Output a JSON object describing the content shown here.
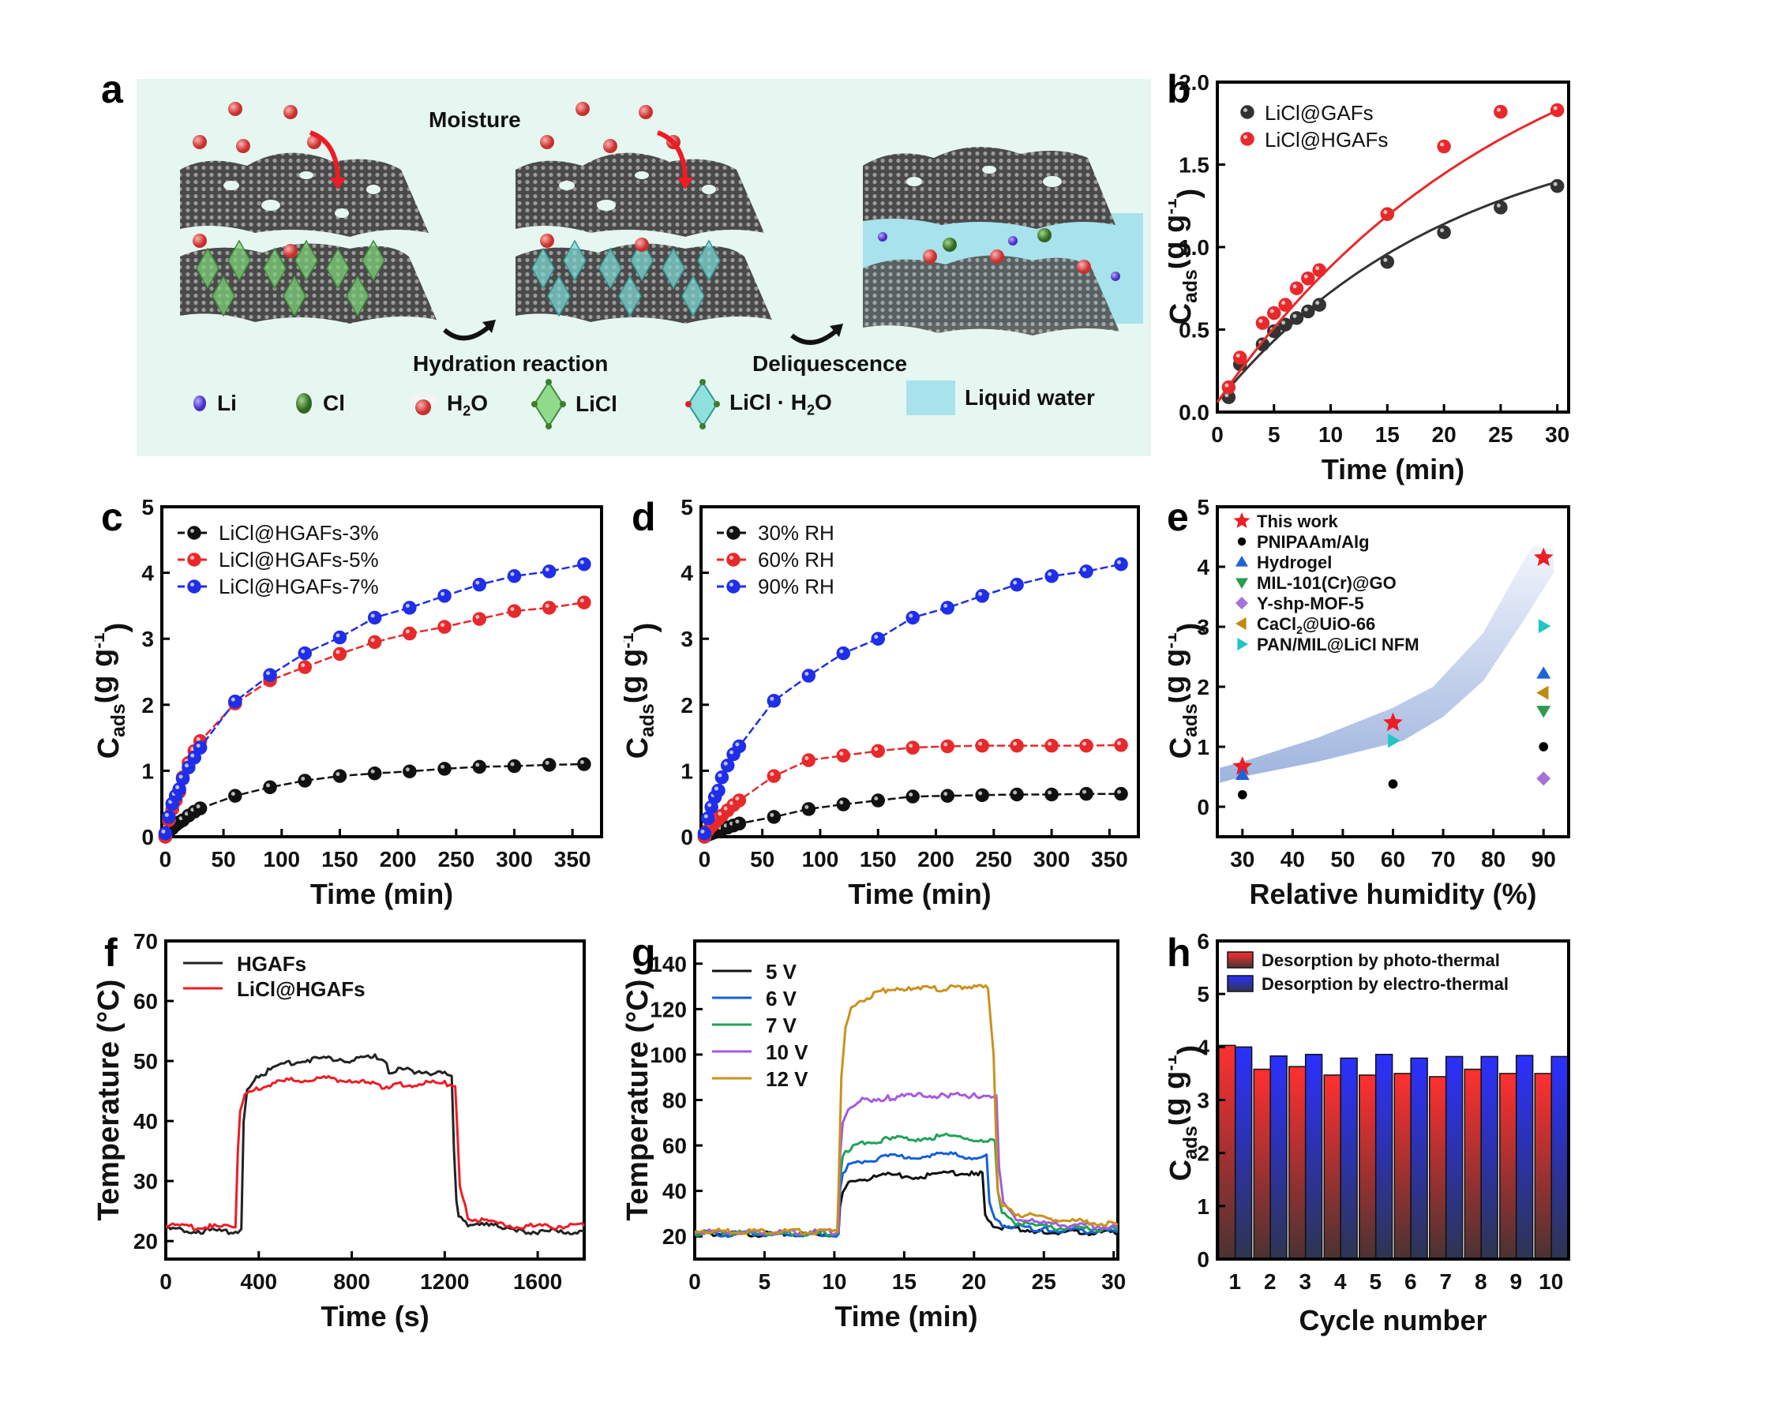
{
  "figure": {
    "panel_letters": [
      "a",
      "b",
      "c",
      "d",
      "e",
      "f",
      "g",
      "h"
    ]
  },
  "schematic": {
    "labels": {
      "moisture": "Moisture",
      "hydration": "Hydration reaction",
      "deliquescence": "Deliquescence"
    },
    "legend": [
      {
        "label": "Li",
        "icon": "lithium-ion-icon",
        "color": "#5b3fd6"
      },
      {
        "label": "Cl",
        "icon": "chloride-ion-icon",
        "color": "#3f7d2a"
      },
      {
        "label": "H2O",
        "icon": "water-molecule-icon",
        "color": "#d9413f"
      },
      {
        "label": "LiCl",
        "icon": "licl-octahedron-icon",
        "color": "#6cc76a"
      },
      {
        "label": "LiCl · H2O",
        "icon": "licl-hydrate-octahedron-icon",
        "color": "#5cc6c2"
      },
      {
        "label": "Liquid water",
        "icon": "liquid-water-swatch-icon",
        "color": "#a8e2ec"
      }
    ],
    "background": "#e6f6f1"
  },
  "chart_data": [
    {
      "id": "b",
      "type": "scatter",
      "title": "",
      "xlabel": "Time (min)",
      "ylabel": "Cads (g g-1)",
      "xlim": [
        0,
        31
      ],
      "ylim": [
        0,
        2.0
      ],
      "xticks": [
        0,
        5,
        10,
        15,
        20,
        25,
        30
      ],
      "yticks": [
        0.0,
        0.5,
        1.0,
        1.5,
        2.0
      ],
      "ytick_labels": [
        "0.0",
        "0.5",
        "1.0",
        "1.5",
        "2.0"
      ],
      "legend_position": "top-left",
      "series": [
        {
          "name": "LiCl@GAFs",
          "color": "#333333",
          "x": [
            1,
            2,
            4,
            5,
            6,
            7,
            8,
            9,
            15,
            20,
            25,
            30
          ],
          "y": [
            0.09,
            0.29,
            0.41,
            0.49,
            0.53,
            0.57,
            0.61,
            0.65,
            0.91,
            1.09,
            1.24,
            1.37
          ],
          "fit": {
            "a": 1.75,
            "k": 0.048,
            "y0": 0.06
          }
        },
        {
          "name": "LiCl@HGAFs",
          "color": "#e8292b",
          "x": [
            1,
            2,
            4,
            5,
            6,
            7,
            8,
            9,
            15,
            20,
            25,
            30
          ],
          "y": [
            0.15,
            0.33,
            0.54,
            0.6,
            0.65,
            0.75,
            0.81,
            0.86,
            1.2,
            1.61,
            1.82,
            1.83
          ],
          "fit": {
            "a": 2.6,
            "k": 0.038,
            "y0": 0.06
          }
        }
      ]
    },
    {
      "id": "c",
      "type": "line",
      "xlabel": "Time (min)",
      "ylabel": "Cads (g g-1)",
      "xlim": [
        -3,
        375
      ],
      "ylim": [
        0,
        5
      ],
      "xticks": [
        0,
        50,
        100,
        150,
        200,
        250,
        300,
        350
      ],
      "yticks": [
        0,
        1,
        2,
        3,
        4,
        5
      ],
      "legend_position": "top-left",
      "series": [
        {
          "name": "LiCl@HGAFs-3%",
          "color": "#111111",
          "x": [
            0,
            3,
            6,
            9,
            12,
            15,
            20,
            25,
            30,
            60,
            90,
            120,
            150,
            180,
            210,
            240,
            270,
            300,
            330,
            360
          ],
          "y": [
            0,
            0.08,
            0.13,
            0.18,
            0.22,
            0.25,
            0.32,
            0.38,
            0.43,
            0.62,
            0.75,
            0.85,
            0.92,
            0.96,
            0.99,
            1.03,
            1.06,
            1.07,
            1.09,
            1.1
          ]
        },
        {
          "name": "LiCl@HGAFs-5%",
          "color": "#e8292b",
          "x": [
            0,
            3,
            6,
            9,
            12,
            15,
            20,
            25,
            30,
            60,
            90,
            120,
            150,
            180,
            210,
            240,
            270,
            300,
            330,
            360
          ],
          "y": [
            0,
            0.25,
            0.42,
            0.55,
            0.68,
            0.9,
            1.12,
            1.3,
            1.45,
            2.02,
            2.37,
            2.57,
            2.77,
            2.95,
            3.08,
            3.18,
            3.3,
            3.42,
            3.47,
            3.55
          ]
        },
        {
          "name": "LiCl@HGAFs-7%",
          "color": "#1f2ee8",
          "x": [
            0,
            3,
            6,
            9,
            12,
            15,
            20,
            25,
            30,
            60,
            90,
            120,
            150,
            180,
            210,
            240,
            270,
            300,
            330,
            360
          ],
          "y": [
            0.05,
            0.3,
            0.5,
            0.62,
            0.72,
            0.88,
            1.05,
            1.2,
            1.35,
            2.05,
            2.45,
            2.78,
            3.02,
            3.32,
            3.47,
            3.65,
            3.82,
            3.95,
            4.02,
            4.13
          ]
        }
      ]
    },
    {
      "id": "d",
      "type": "line",
      "xlabel": "Time (min)",
      "ylabel": "Cads (g g-1)",
      "xlim": [
        -3,
        375
      ],
      "ylim": [
        0,
        5
      ],
      "xticks": [
        0,
        50,
        100,
        150,
        200,
        250,
        300,
        350
      ],
      "yticks": [
        0,
        1,
        2,
        3,
        4,
        5
      ],
      "legend_position": "top-left",
      "series": [
        {
          "name": "30% RH",
          "color": "#111111",
          "x": [
            0,
            3,
            6,
            9,
            12,
            15,
            20,
            25,
            30,
            60,
            90,
            120,
            150,
            180,
            210,
            240,
            270,
            300,
            330,
            360
          ],
          "y": [
            0,
            0.03,
            0.05,
            0.07,
            0.09,
            0.11,
            0.14,
            0.17,
            0.2,
            0.3,
            0.42,
            0.49,
            0.55,
            0.61,
            0.62,
            0.63,
            0.64,
            0.64,
            0.65,
            0.65
          ]
        },
        {
          "name": "60% RH",
          "color": "#e8292b",
          "x": [
            0,
            3,
            6,
            9,
            12,
            15,
            20,
            25,
            30,
            60,
            90,
            120,
            150,
            180,
            210,
            240,
            270,
            300,
            330,
            360
          ],
          "y": [
            0,
            0.1,
            0.16,
            0.22,
            0.27,
            0.32,
            0.4,
            0.48,
            0.55,
            0.92,
            1.16,
            1.23,
            1.3,
            1.35,
            1.37,
            1.38,
            1.38,
            1.38,
            1.38,
            1.39
          ]
        },
        {
          "name": "90% RH",
          "color": "#1f2ee8",
          "x": [
            0,
            3,
            6,
            9,
            12,
            15,
            20,
            25,
            30,
            60,
            90,
            120,
            150,
            180,
            210,
            240,
            270,
            300,
            330,
            360
          ],
          "y": [
            0.05,
            0.28,
            0.45,
            0.6,
            0.7,
            0.9,
            1.08,
            1.25,
            1.37,
            2.06,
            2.44,
            2.78,
            3.0,
            3.32,
            3.47,
            3.65,
            3.82,
            3.95,
            4.02,
            4.13
          ]
        }
      ]
    },
    {
      "id": "e",
      "type": "scatter",
      "xlabel": "Relative humidity (%)",
      "ylabel": "Cads (g g-1)",
      "xlim": [
        25,
        95
      ],
      "ylim": [
        -0.5,
        5
      ],
      "xticks": [
        30,
        40,
        50,
        60,
        70,
        80,
        90
      ],
      "yticks": [
        0,
        1,
        2,
        3,
        4,
        5
      ],
      "legend_position": "top-left",
      "band": {
        "color": "#8ea7d8",
        "upper": [
          [
            25.5,
            0.65
          ],
          [
            30,
            0.75
          ],
          [
            45,
            1.15
          ],
          [
            60,
            1.65
          ],
          [
            68,
            2.0
          ],
          [
            78,
            2.9
          ],
          [
            86,
            4.1
          ],
          [
            88,
            4.35
          ],
          [
            92,
            4.3
          ]
        ],
        "lower": [
          [
            92,
            3.9
          ],
          [
            86,
            3.1
          ],
          [
            78,
            2.1
          ],
          [
            70,
            1.5
          ],
          [
            62,
            1.1
          ],
          [
            45,
            0.75
          ],
          [
            30,
            0.5
          ],
          [
            25.5,
            0.4
          ]
        ]
      },
      "series": [
        {
          "name": "This work",
          "marker": "star",
          "color": "#ee1c25",
          "x": [
            30,
            60,
            90
          ],
          "y": [
            0.67,
            1.4,
            4.15
          ]
        },
        {
          "name": "PNIPAAm/Alg",
          "marker": "circle",
          "color": "#000000",
          "x": [
            30,
            60,
            90
          ],
          "y": [
            0.2,
            0.38,
            1.0
          ]
        },
        {
          "name": "Hydrogel",
          "marker": "triangle-up",
          "color": "#1f63d6",
          "x": [
            30,
            90
          ],
          "y": [
            0.53,
            2.22
          ]
        },
        {
          "name": "MIL-101(Cr)@GO",
          "marker": "triangle-down",
          "color": "#2a9b4f",
          "x": [
            90
          ],
          "y": [
            1.6
          ]
        },
        {
          "name": "Y-shp-MOF-5",
          "marker": "diamond",
          "color": "#a672d9",
          "x": [
            90
          ],
          "y": [
            0.47
          ]
        },
        {
          "name": "CaCl2@UiO-66",
          "marker": "triangle-left",
          "color": "#c08a12",
          "x": [
            90
          ],
          "y": [
            1.9
          ]
        },
        {
          "name": "PAN/MIL@LiCl NFM",
          "marker": "triangle-right",
          "color": "#1ec6c6",
          "x": [
            60,
            90
          ],
          "y": [
            1.1,
            3.01
          ]
        }
      ]
    },
    {
      "id": "f",
      "type": "line",
      "xlabel": "Time (s)",
      "ylabel": "Temperature (°C)",
      "xlim": [
        0,
        1800
      ],
      "ylim": [
        17,
        70
      ],
      "xticks": [
        0,
        400,
        800,
        1200,
        1600
      ],
      "yticks": [
        20,
        30,
        40,
        50,
        60,
        70
      ],
      "legend_position": "top-left",
      "series": [
        {
          "name": "HGAFs",
          "color": "#222222",
          "x": [
            0,
            100,
            200,
            310,
            325,
            335,
            350,
            400,
            500,
            600,
            700,
            800,
            900,
            940,
            960,
            1000,
            1100,
            1200,
            1230,
            1240,
            1250,
            1260,
            1300,
            1400,
            1500,
            1520,
            1600,
            1700,
            1800
          ],
          "y": [
            22.0,
            21.8,
            21.6,
            21.6,
            22,
            40,
            45,
            47.5,
            49.5,
            50.2,
            50.5,
            50.2,
            50.6,
            50.4,
            48.2,
            48.5,
            48.3,
            47.8,
            47.5,
            35,
            27,
            24,
            22.8,
            22.5,
            22.3,
            21.7,
            21.6,
            21.6,
            21.6
          ]
        },
        {
          "name": "LiCl@HGAFs",
          "color": "#ee1c25",
          "x": [
            0,
            100,
            200,
            300,
            310,
            320,
            340,
            400,
            500,
            600,
            700,
            800,
            900,
            950,
            1000,
            1100,
            1200,
            1245,
            1255,
            1265,
            1300,
            1400,
            1500,
            1600,
            1700,
            1800
          ],
          "y": [
            22.5,
            22.4,
            22.3,
            22.3,
            35,
            42,
            44,
            45.5,
            46.5,
            47,
            47,
            46.8,
            46,
            45.8,
            46,
            46.2,
            46.3,
            45.8,
            38,
            29,
            24,
            23,
            22.5,
            22.4,
            22.5,
            22.5
          ]
        }
      ]
    },
    {
      "id": "g",
      "type": "line",
      "xlabel": "Time (min)",
      "ylabel": "Temperature (°C)",
      "xlim": [
        0,
        30.3
      ],
      "ylim": [
        10,
        150
      ],
      "xticks": [
        0,
        5,
        10,
        15,
        20,
        25,
        30
      ],
      "yticks": [
        20,
        40,
        60,
        80,
        100,
        120,
        140
      ],
      "legend_position": "top-left",
      "series": [
        {
          "name": "5 V",
          "color": "#111111",
          "x": [
            0,
            10.3,
            10.4,
            10.6,
            11,
            12,
            14,
            16,
            18,
            20,
            20.6,
            20.8,
            21.2,
            22,
            25,
            30.3
          ],
          "y": [
            21,
            21,
            33,
            40,
            43,
            45,
            47,
            46,
            48,
            48,
            48,
            30,
            25,
            24,
            22,
            21.5
          ]
        },
        {
          "name": "6 V",
          "color": "#1560d8",
          "x": [
            0,
            10.3,
            10.4,
            10.6,
            11,
            12,
            14,
            16,
            18,
            20,
            20.9,
            21.1,
            21.5,
            22.5,
            25,
            30.3
          ],
          "y": [
            21,
            21,
            40,
            47,
            51,
            53,
            55,
            55,
            56,
            55,
            56,
            35,
            27,
            24.5,
            23,
            22
          ]
        },
        {
          "name": "7 V",
          "color": "#21a25a",
          "x": [
            0,
            10.3,
            10.4,
            10.6,
            11,
            12,
            14,
            16,
            18,
            20,
            21.5,
            21.7,
            22,
            23,
            25,
            30.3
          ],
          "y": [
            21.5,
            21.5,
            45,
            55,
            58,
            61,
            63,
            63,
            64,
            63,
            62,
            40,
            30,
            26,
            24,
            23
          ]
        },
        {
          "name": "10 V",
          "color": "#a35bdf",
          "x": [
            0,
            10.3,
            10.4,
            10.6,
            11,
            12,
            14,
            16,
            18,
            20,
            21.6,
            21.8,
            22.1,
            23,
            25,
            30.3
          ],
          "y": [
            22,
            22,
            55,
            70,
            76,
            80,
            81,
            82,
            82,
            82,
            82,
            50,
            35,
            28,
            25.5,
            24
          ]
        },
        {
          "name": "12 V",
          "color": "#c9921b",
          "x": [
            0,
            10.2,
            10.3,
            10.5,
            10.8,
            11.2,
            12,
            13,
            14,
            15,
            16,
            17,
            18,
            19,
            20,
            21,
            21.4,
            21.7,
            22,
            23,
            25,
            30.3
          ],
          "y": [
            22.5,
            22,
            40,
            90,
            112,
            120,
            124,
            127,
            129,
            128,
            130,
            129,
            129,
            130,
            130,
            129,
            100,
            40,
            33,
            30,
            28,
            25
          ]
        }
      ]
    },
    {
      "id": "h",
      "type": "bar",
      "xlabel": "Cycle number",
      "ylabel": "Cads (g g-1)",
      "ylim": [
        0,
        6
      ],
      "yticks": [
        0,
        1,
        2,
        3,
        4,
        5,
        6
      ],
      "categories": [
        "1",
        "2",
        "3",
        "4",
        "5",
        "6",
        "7",
        "8",
        "9",
        "10"
      ],
      "legend_position": "top-left",
      "series": [
        {
          "name": "Desorption by photo-thermal",
          "color": "#ff3030",
          "values": [
            4.03,
            3.58,
            3.63,
            3.47,
            3.47,
            3.5,
            3.44,
            3.58,
            3.5,
            3.5
          ]
        },
        {
          "name": "Desorption by electro-thermal",
          "color": "#2b30ff",
          "values": [
            4.0,
            3.83,
            3.86,
            3.79,
            3.86,
            3.79,
            3.82,
            3.82,
            3.84,
            3.82
          ]
        }
      ]
    }
  ]
}
